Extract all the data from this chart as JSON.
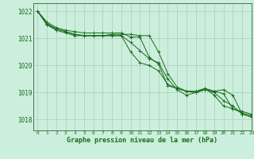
{
  "title": "Graphe pression niveau de la mer (hPa)",
  "background_color": "#cceedd",
  "grid_color": "#aaccbb",
  "line_color": "#1a6b1a",
  "spine_color": "#336633",
  "xlim": [
    -0.5,
    23
  ],
  "ylim": [
    1017.6,
    1022.3
  ],
  "yticks": [
    1018,
    1019,
    1020,
    1021,
    1022
  ],
  "xticks": [
    0,
    1,
    2,
    3,
    4,
    5,
    6,
    7,
    8,
    9,
    10,
    11,
    12,
    13,
    14,
    15,
    16,
    17,
    18,
    19,
    20,
    21,
    22,
    23
  ],
  "series": [
    [
      1022.0,
      1021.6,
      1021.4,
      1021.3,
      1021.25,
      1021.2,
      1021.2,
      1021.2,
      1021.2,
      1021.2,
      1021.05,
      1021.05,
      1020.3,
      1020.05,
      1019.25,
      1019.15,
      1019.05,
      1019.0,
      1019.15,
      1018.9,
      1018.5,
      1018.4,
      1018.3,
      1018.2
    ],
    [
      1022.0,
      1021.55,
      1021.35,
      1021.25,
      1021.15,
      1021.1,
      1021.1,
      1021.1,
      1021.1,
      1021.1,
      1020.85,
      1020.55,
      1020.25,
      1020.1,
      1019.5,
      1019.1,
      1018.9,
      1019.0,
      1019.1,
      1019.0,
      1018.7,
      1018.5,
      1018.2,
      1018.1
    ],
    [
      1022.0,
      1021.5,
      1021.3,
      1021.2,
      1021.1,
      1021.1,
      1021.1,
      1021.1,
      1021.1,
      1021.1,
      1020.5,
      1020.1,
      1020.0,
      1019.8,
      1019.3,
      1019.15,
      1019.05,
      1019.05,
      1019.15,
      1019.05,
      1018.95,
      1018.4,
      1018.25,
      1018.15
    ],
    [
      1022.0,
      1021.5,
      1021.35,
      1021.25,
      1021.15,
      1021.1,
      1021.1,
      1021.1,
      1021.15,
      1021.15,
      1021.15,
      1021.1,
      1021.1,
      1020.5,
      1019.7,
      1019.2,
      1019.05,
      1019.0,
      1019.1,
      1019.05,
      1019.1,
      1018.9,
      1018.2,
      1018.1
    ]
  ]
}
